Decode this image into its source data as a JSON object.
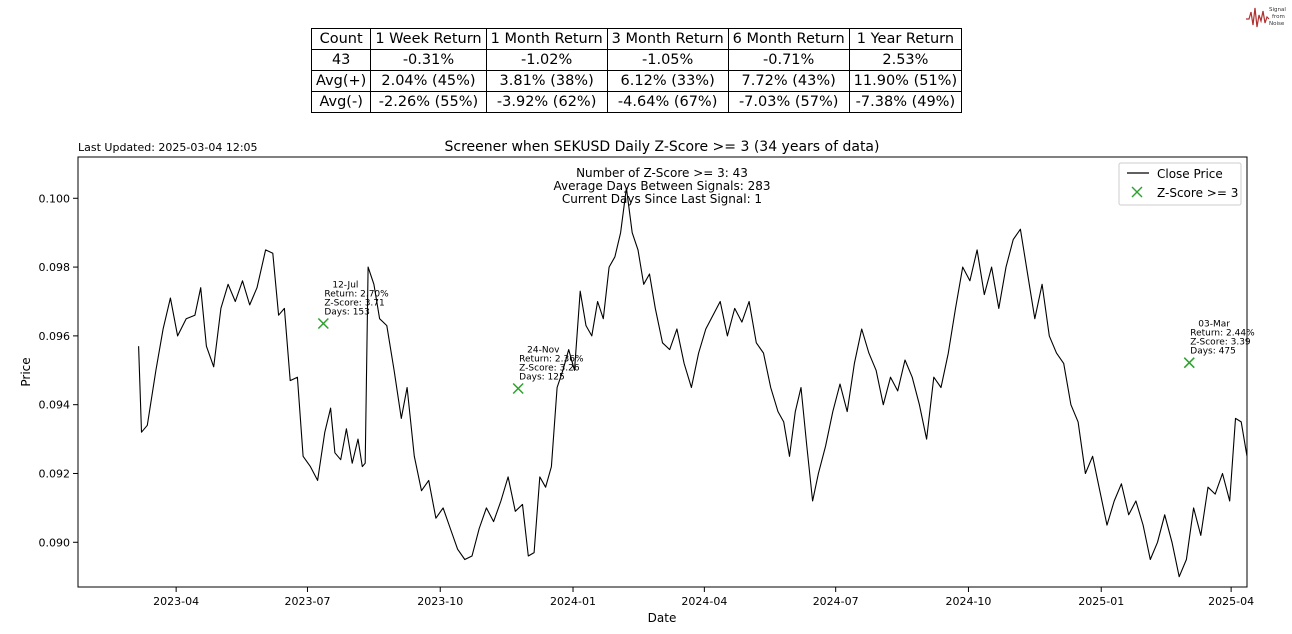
{
  "table": {
    "headers": [
      "Count",
      "1 Week Return",
      "1 Month Return",
      "3 Month Return",
      "6 Month Return",
      "1 Year Return"
    ],
    "rows": [
      [
        "43",
        "-0.31%",
        "-1.02%",
        "-1.05%",
        "-0.71%",
        "2.53%"
      ],
      [
        "Avg(+)",
        "2.04% (45%)",
        "3.81% (38%)",
        "6.12% (33%)",
        "7.72% (43%)",
        "11.90% (51%)"
      ],
      [
        "Avg(-)",
        "-2.26% (55%)",
        "-3.92% (62%)",
        "-4.64% (67%)",
        "-7.03% (57%)",
        "-7.38% (49%)"
      ]
    ]
  },
  "logo": {
    "lines": [
      "Signal",
      "from",
      "Noise"
    ]
  },
  "chart_data": {
    "type": "line",
    "title": "Screener when SEKUSD Daily Z-Score >= 3 (34 years of data)",
    "last_updated": "Last Updated: 2025-03-04 12:05",
    "xlabel": "Date",
    "ylabel": "Price",
    "xlim": [
      "2023-01-23",
      "2025-04-12"
    ],
    "ylim": [
      0.0887,
      0.1012
    ],
    "x_ticks": [
      "2023-04",
      "2023-07",
      "2023-10",
      "2024-01",
      "2024-04",
      "2024-07",
      "2024-10",
      "2025-01",
      "2025-04"
    ],
    "y_ticks": [
      0.09,
      0.092,
      0.094,
      0.096,
      0.098,
      0.1
    ],
    "y_tick_labels": [
      "0.090",
      "0.092",
      "0.094",
      "0.096",
      "0.098",
      "0.100"
    ],
    "grid": false,
    "legend": {
      "position": "top-right",
      "entries": [
        {
          "label": "Close Price",
          "kind": "line",
          "color": "#000000"
        },
        {
          "label": "Z-Score >= 3",
          "kind": "marker",
          "color": "#2ca02c"
        }
      ]
    },
    "stats_box": [
      "Number of Z-Score >= 3: 43",
      "Average Days Between Signals: 283",
      "Current Days Since Last Signal: 1"
    ],
    "series": [
      {
        "name": "Close Price",
        "color": "#000000",
        "points": [
          [
            "2023-03-06",
            0.0957
          ],
          [
            "2023-03-08",
            0.0932
          ],
          [
            "2023-03-12",
            0.0934
          ],
          [
            "2023-03-18",
            0.095
          ],
          [
            "2023-03-23",
            0.0962
          ],
          [
            "2023-03-28",
            0.0971
          ],
          [
            "2023-04-02",
            0.096
          ],
          [
            "2023-04-08",
            0.0965
          ],
          [
            "2023-04-14",
            0.0966
          ],
          [
            "2023-04-18",
            0.0974
          ],
          [
            "2023-04-22",
            0.0957
          ],
          [
            "2023-04-27",
            0.0951
          ],
          [
            "2023-05-02",
            0.0968
          ],
          [
            "2023-05-07",
            0.0975
          ],
          [
            "2023-05-12",
            0.097
          ],
          [
            "2023-05-17",
            0.0976
          ],
          [
            "2023-05-22",
            0.0969
          ],
          [
            "2023-05-27",
            0.0974
          ],
          [
            "2023-06-02",
            0.0985
          ],
          [
            "2023-06-07",
            0.0984
          ],
          [
            "2023-06-11",
            0.0966
          ],
          [
            "2023-06-15",
            0.0968
          ],
          [
            "2023-06-19",
            0.0947
          ],
          [
            "2023-06-24",
            0.0948
          ],
          [
            "2023-06-28",
            0.0925
          ],
          [
            "2023-07-03",
            0.0922
          ],
          [
            "2023-07-08",
            0.0918
          ],
          [
            "2023-07-13",
            0.0932
          ],
          [
            "2023-07-17",
            0.0939
          ],
          [
            "2023-07-20",
            0.0926
          ],
          [
            "2023-07-24",
            0.0924
          ],
          [
            "2023-07-28",
            0.0933
          ],
          [
            "2023-08-01",
            0.0923
          ],
          [
            "2023-08-05",
            0.093
          ],
          [
            "2023-08-08",
            0.0922
          ],
          [
            "2023-08-10",
            0.0923
          ],
          [
            "2023-08-12",
            0.098
          ],
          [
            "2023-08-16",
            0.0975
          ],
          [
            "2023-08-20",
            0.0965
          ],
          [
            "2023-08-25",
            0.0963
          ],
          [
            "2023-08-30",
            0.095
          ],
          [
            "2023-09-04",
            0.0936
          ],
          [
            "2023-09-08",
            0.0945
          ],
          [
            "2023-09-13",
            0.0925
          ],
          [
            "2023-09-18",
            0.0915
          ],
          [
            "2023-09-23",
            0.0918
          ],
          [
            "2023-09-28",
            0.0907
          ],
          [
            "2023-10-03",
            0.091
          ],
          [
            "2023-10-08",
            0.0904
          ],
          [
            "2023-10-13",
            0.0898
          ],
          [
            "2023-10-18",
            0.0895
          ],
          [
            "2023-10-23",
            0.0896
          ],
          [
            "2023-10-28",
            0.0904
          ],
          [
            "2023-11-02",
            0.091
          ],
          [
            "2023-11-07",
            0.0906
          ],
          [
            "2023-11-12",
            0.0912
          ],
          [
            "2023-11-17",
            0.0919
          ],
          [
            "2023-11-22",
            0.0909
          ],
          [
            "2023-11-27",
            0.0911
          ],
          [
            "2023-12-01",
            0.0896
          ],
          [
            "2023-12-05",
            0.0897
          ],
          [
            "2023-12-09",
            0.0919
          ],
          [
            "2023-12-13",
            0.0916
          ],
          [
            "2023-12-17",
            0.0922
          ],
          [
            "2023-12-21",
            0.0945
          ],
          [
            "2023-12-25",
            0.095
          ],
          [
            "2023-12-29",
            0.0956
          ],
          [
            "2024-01-02",
            0.095
          ],
          [
            "2024-01-06",
            0.0973
          ],
          [
            "2024-01-10",
            0.0963
          ],
          [
            "2024-01-14",
            0.096
          ],
          [
            "2024-01-18",
            0.097
          ],
          [
            "2024-01-22",
            0.0965
          ],
          [
            "2024-01-26",
            0.098
          ],
          [
            "2024-01-30",
            0.0983
          ],
          [
            "2024-02-03",
            0.099
          ],
          [
            "2024-02-07",
            0.1003
          ],
          [
            "2024-02-11",
            0.099
          ],
          [
            "2024-02-15",
            0.0985
          ],
          [
            "2024-02-19",
            0.0975
          ],
          [
            "2024-02-23",
            0.0978
          ],
          [
            "2024-02-27",
            0.0968
          ],
          [
            "2024-03-03",
            0.0958
          ],
          [
            "2024-03-08",
            0.0956
          ],
          [
            "2024-03-13",
            0.0962
          ],
          [
            "2024-03-18",
            0.0952
          ],
          [
            "2024-03-23",
            0.0945
          ],
          [
            "2024-03-28",
            0.0955
          ],
          [
            "2024-04-02",
            0.0962
          ],
          [
            "2024-04-07",
            0.0966
          ],
          [
            "2024-04-12",
            0.097
          ],
          [
            "2024-04-17",
            0.096
          ],
          [
            "2024-04-22",
            0.0968
          ],
          [
            "2024-04-27",
            0.0964
          ],
          [
            "2024-05-02",
            0.097
          ],
          [
            "2024-05-07",
            0.0958
          ],
          [
            "2024-05-12",
            0.0955
          ],
          [
            "2024-05-17",
            0.0945
          ],
          [
            "2024-05-22",
            0.0938
          ],
          [
            "2024-05-26",
            0.0935
          ],
          [
            "2024-05-30",
            0.0925
          ],
          [
            "2024-06-03",
            0.0938
          ],
          [
            "2024-06-07",
            0.0945
          ],
          [
            "2024-06-11",
            0.0928
          ],
          [
            "2024-06-15",
            0.0912
          ],
          [
            "2024-06-19",
            0.092
          ],
          [
            "2024-06-24",
            0.0928
          ],
          [
            "2024-06-29",
            0.0938
          ],
          [
            "2024-07-04",
            0.0946
          ],
          [
            "2024-07-09",
            0.0938
          ],
          [
            "2024-07-14",
            0.0952
          ],
          [
            "2024-07-19",
            0.0962
          ],
          [
            "2024-07-24",
            0.0955
          ],
          [
            "2024-07-29",
            0.095
          ],
          [
            "2024-08-03",
            0.094
          ],
          [
            "2024-08-08",
            0.0948
          ],
          [
            "2024-08-13",
            0.0944
          ],
          [
            "2024-08-18",
            0.0953
          ],
          [
            "2024-08-23",
            0.0948
          ],
          [
            "2024-08-28",
            0.094
          ],
          [
            "2024-09-02",
            0.093
          ],
          [
            "2024-09-07",
            0.0948
          ],
          [
            "2024-09-12",
            0.0945
          ],
          [
            "2024-09-17",
            0.0955
          ],
          [
            "2024-09-22",
            0.0968
          ],
          [
            "2024-09-27",
            0.098
          ],
          [
            "2024-10-02",
            0.0976
          ],
          [
            "2024-10-07",
            0.0985
          ],
          [
            "2024-10-12",
            0.0972
          ],
          [
            "2024-10-17",
            0.098
          ],
          [
            "2024-10-22",
            0.0968
          ],
          [
            "2024-10-27",
            0.098
          ],
          [
            "2024-11-01",
            0.0988
          ],
          [
            "2024-11-06",
            0.0991
          ],
          [
            "2024-11-11",
            0.0978
          ],
          [
            "2024-11-16",
            0.0965
          ],
          [
            "2024-11-21",
            0.0975
          ],
          [
            "2024-11-26",
            0.096
          ],
          [
            "2024-12-01",
            0.0955
          ],
          [
            "2024-12-06",
            0.0952
          ],
          [
            "2024-12-11",
            0.094
          ],
          [
            "2024-12-16",
            0.0935
          ],
          [
            "2024-12-21",
            0.092
          ],
          [
            "2024-12-26",
            0.0925
          ],
          [
            "2024-12-31",
            0.0915
          ],
          [
            "2025-01-05",
            0.0905
          ],
          [
            "2025-01-10",
            0.0912
          ],
          [
            "2025-01-15",
            0.0917
          ],
          [
            "2025-01-20",
            0.0908
          ],
          [
            "2025-01-25",
            0.0912
          ],
          [
            "2025-01-30",
            0.0905
          ],
          [
            "2025-02-04",
            0.0895
          ],
          [
            "2025-02-09",
            0.09
          ],
          [
            "2025-02-14",
            0.0908
          ],
          [
            "2025-02-19",
            0.09
          ],
          [
            "2025-02-24",
            0.089
          ],
          [
            "2025-03-01",
            0.0895
          ],
          [
            "2025-03-06",
            0.091
          ],
          [
            "2025-03-11",
            0.0902
          ],
          [
            "2025-03-16",
            0.0916
          ],
          [
            "2025-03-21",
            0.0914
          ],
          [
            "2025-03-26",
            0.092
          ],
          [
            "2025-03-31",
            0.0912
          ],
          [
            "2025-04-04",
            0.0936
          ],
          [
            "2025-04-08",
            0.0935
          ],
          [
            "2025-04-12",
            0.0925
          ]
        ]
      },
      {
        "name": "Z-Score >= 3",
        "color": "#2ca02c",
        "points": [
          [
            "2023-07-12",
            0.09636,
            "12-Jul",
            [
              "Return: 2.70%",
              "Z-Score: 3.71",
              "Days: 153"
            ]
          ],
          [
            "2023-11-24",
            0.09447,
            "24-Nov",
            [
              "Return: 2.36%",
              "Z-Score: 3.26",
              "Days: 125"
            ]
          ],
          [
            "2025-03-03",
            0.09522,
            "03-Mar",
            [
              "Return: 2.44%",
              "Z-Score: 3.39",
              "Days: 475"
            ]
          ]
        ]
      }
    ]
  }
}
